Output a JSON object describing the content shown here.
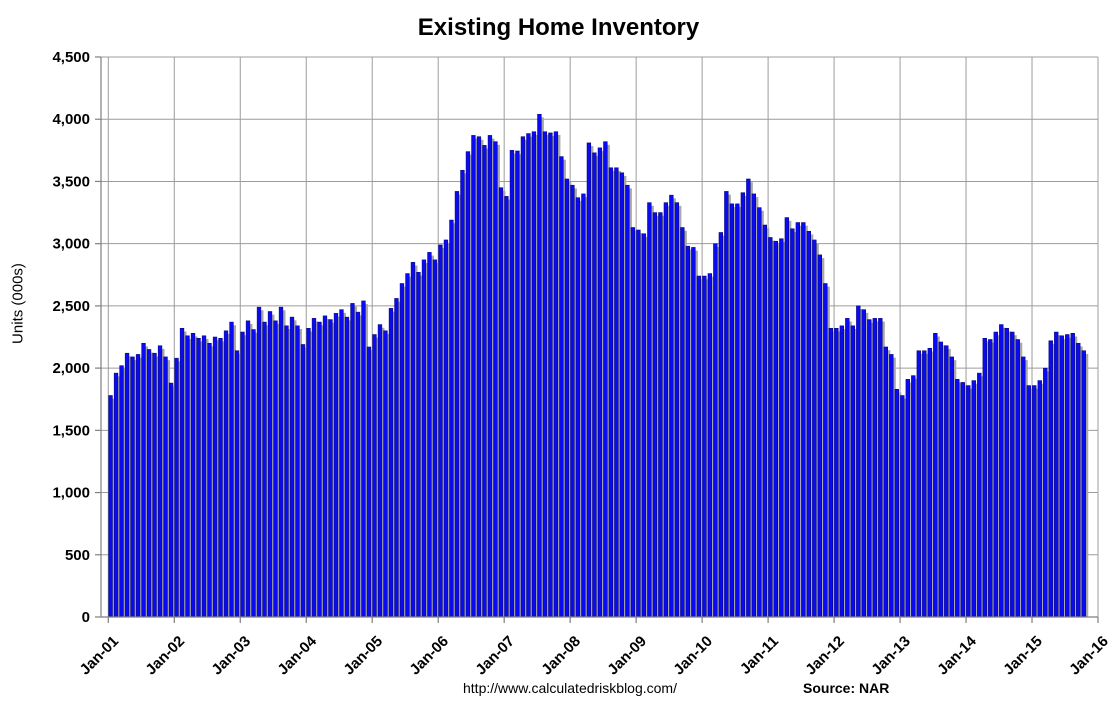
{
  "chart": {
    "title": "Existing Home Inventory",
    "ylabel": "Units (000s)",
    "footer_url": "http://www.calculatedriskblog.com/",
    "footer_source": "Source: NAR",
    "colors": {
      "bar": "#0b0bf2",
      "bar_edge": "#000070",
      "shadow": "#a9a9a9",
      "gridline": "#9c9c9c",
      "axis": "#7f7f7f",
      "text": "#000000",
      "background": "#ffffff"
    }
  },
  "chart_data": {
    "type": "bar",
    "title": "Existing Home Inventory",
    "xlabel": "",
    "ylabel": "Units (000s)",
    "ylim": [
      0,
      4500
    ],
    "ytick_step": 500,
    "ytick_labels": [
      "0",
      "500",
      "1,000",
      "1,500",
      "2,000",
      "2,500",
      "3,000",
      "3,500",
      "4,000",
      "4,500"
    ],
    "x_tick_labels": [
      "Jan-01",
      "Jan-02",
      "Jan-03",
      "Jan-04",
      "Jan-05",
      "Jan-06",
      "Jan-07",
      "Jan-08",
      "Jan-09",
      "Jan-10",
      "Jan-11",
      "Jan-12",
      "Jan-13",
      "Jan-14",
      "Jan-15",
      "Jan-16"
    ],
    "months_per_tick": 12,
    "x_start": "Jan-01",
    "x_end": "Oct-15",
    "total_month_slots": 180,
    "grid": true,
    "legend": null,
    "values": [
      1780,
      1960,
      2020,
      2120,
      2090,
      2110,
      2200,
      2150,
      2120,
      2180,
      2090,
      1880,
      2080,
      2320,
      2260,
      2280,
      2240,
      2260,
      2200,
      2250,
      2240,
      2300,
      2370,
      2140,
      2290,
      2380,
      2310,
      2490,
      2370,
      2455,
      2380,
      2490,
      2340,
      2410,
      2340,
      2190,
      2320,
      2400,
      2370,
      2420,
      2390,
      2440,
      2470,
      2410,
      2520,
      2450,
      2540,
      2170,
      2270,
      2350,
      2300,
      2480,
      2560,
      2680,
      2760,
      2850,
      2770,
      2870,
      2930,
      2870,
      2990,
      3030,
      3190,
      3420,
      3590,
      3740,
      3870,
      3860,
      3790,
      3870,
      3820,
      3450,
      3380,
      3750,
      3745,
      3860,
      3885,
      3900,
      4040,
      3900,
      3890,
      3900,
      3700,
      3520,
      3470,
      3370,
      3400,
      3810,
      3730,
      3770,
      3820,
      3610,
      3610,
      3570,
      3470,
      3130,
      3110,
      3080,
      3330,
      3250,
      3250,
      3330,
      3390,
      3330,
      3130,
      2980,
      2970,
      2740,
      2740,
      2760,
      3000,
      3090,
      3420,
      3320,
      3320,
      3410,
      3520,
      3400,
      3290,
      3150,
      3050,
      3020,
      3040,
      3210,
      3120,
      3170,
      3170,
      3100,
      3030,
      2910,
      2680,
      2320,
      2320,
      2340,
      2400,
      2340,
      2500,
      2470,
      2390,
      2400,
      2400,
      2170,
      2110,
      1830,
      1780,
      1910,
      1940,
      2140,
      2140,
      2160,
      2280,
      2210,
      2180,
      2090,
      1910,
      1885,
      1860,
      1900,
      1960,
      2240,
      2230,
      2290,
      2350,
      2320,
      2290,
      2230,
      2090,
      1860,
      1860,
      1900,
      2000,
      2220,
      2290,
      2260,
      2270,
      2280,
      2200,
      2140
    ]
  }
}
